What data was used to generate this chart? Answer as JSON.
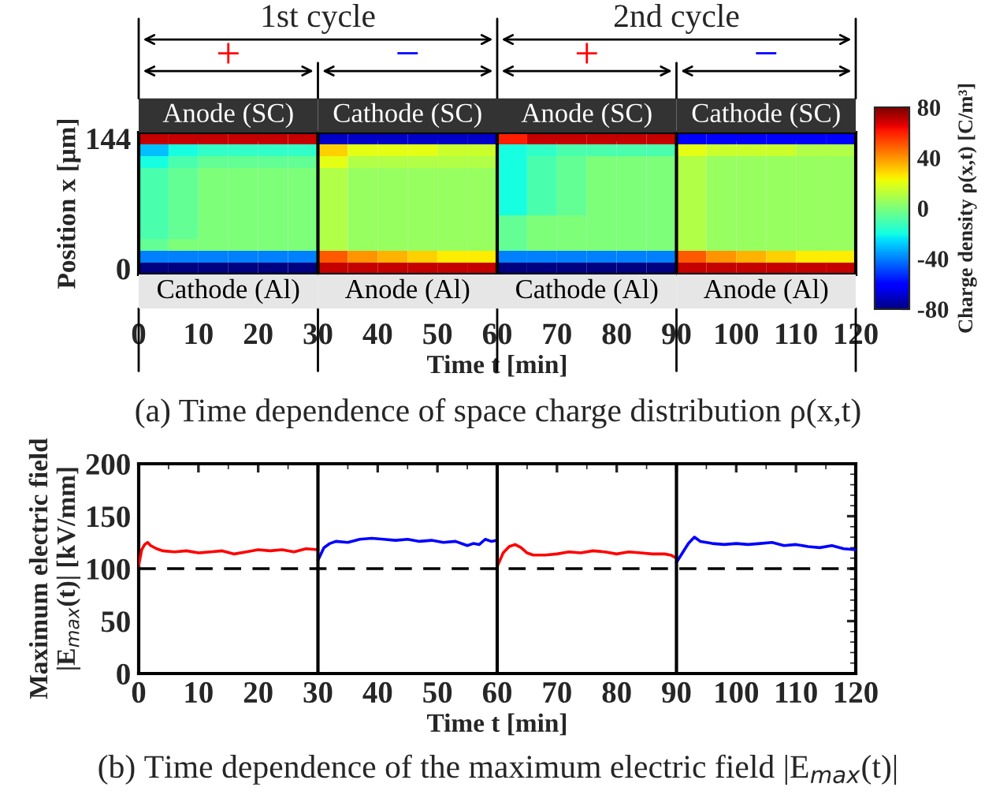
{
  "chart_data": [
    {
      "type": "heatmap",
      "xlabel": "Time t [min]",
      "ylabel": "Position x [μm]",
      "clabel": "Charge density ρ(x,t) [C/m³]",
      "x": [
        2.5,
        7.5,
        12.5,
        17.5,
        22.5,
        27.5,
        32.5,
        37.5,
        42.5,
        47.5,
        52.5,
        57.5,
        62.5,
        67.5,
        72.5,
        77.5,
        82.5,
        87.5,
        92.5,
        97.5,
        102.5,
        107.5,
        112.5,
        117.5
      ],
      "y_categories": [
        "144",
        null,
        null,
        null,
        null,
        null,
        null,
        null,
        null,
        null,
        null,
        "0"
      ],
      "xlim": [
        0,
        120
      ],
      "xticks": [
        0,
        10,
        20,
        30,
        40,
        50,
        60,
        70,
        80,
        90,
        100,
        110,
        120
      ],
      "clim": [
        -80,
        80
      ],
      "cticks": [
        -80,
        -40,
        0,
        40,
        80
      ],
      "cells": [
        [
          70,
          70,
          70,
          70,
          70,
          70,
          -70,
          -70,
          -70,
          -70,
          -70,
          -70,
          60,
          70,
          70,
          70,
          70,
          70,
          -60,
          -60,
          -60,
          -60,
          -60,
          -60
        ],
        [
          -30,
          -20,
          -15,
          -15,
          -15,
          -15,
          30,
          20,
          20,
          20,
          15,
          15,
          -20,
          -15,
          -10,
          -10,
          -10,
          -10,
          20,
          15,
          15,
          15,
          10,
          10
        ],
        [
          -20,
          -10,
          -5,
          -5,
          -5,
          -5,
          20,
          10,
          10,
          10,
          10,
          10,
          -20,
          -10,
          -5,
          0,
          0,
          0,
          10,
          5,
          5,
          5,
          5,
          5
        ],
        [
          -10,
          -5,
          0,
          0,
          0,
          0,
          10,
          5,
          5,
          5,
          5,
          5,
          -20,
          -10,
          -5,
          0,
          0,
          0,
          10,
          5,
          5,
          5,
          5,
          5
        ],
        [
          -10,
          -5,
          0,
          0,
          0,
          0,
          10,
          5,
          5,
          5,
          5,
          5,
          -20,
          -10,
          -5,
          0,
          0,
          0,
          10,
          5,
          5,
          5,
          5,
          5
        ],
        [
          -10,
          -5,
          0,
          0,
          0,
          0,
          10,
          5,
          5,
          5,
          5,
          5,
          -20,
          -10,
          -5,
          0,
          0,
          0,
          10,
          5,
          5,
          5,
          5,
          5
        ],
        [
          -10,
          -5,
          0,
          0,
          0,
          0,
          10,
          5,
          5,
          5,
          5,
          5,
          -20,
          -10,
          -5,
          0,
          0,
          0,
          10,
          5,
          5,
          5,
          5,
          5
        ],
        [
          -10,
          -5,
          0,
          0,
          0,
          0,
          10,
          5,
          5,
          5,
          5,
          5,
          -5,
          0,
          0,
          0,
          0,
          0,
          10,
          5,
          5,
          5,
          5,
          5
        ],
        [
          -10,
          -5,
          0,
          0,
          0,
          0,
          10,
          5,
          5,
          5,
          5,
          5,
          -5,
          0,
          0,
          0,
          0,
          0,
          10,
          5,
          5,
          5,
          5,
          5
        ],
        [
          -5,
          0,
          0,
          0,
          0,
          0,
          10,
          5,
          5,
          5,
          5,
          5,
          -5,
          0,
          0,
          0,
          0,
          0,
          10,
          5,
          5,
          5,
          5,
          5
        ],
        [
          -40,
          -40,
          -40,
          -40,
          -40,
          -40,
          50,
          40,
          35,
          30,
          25,
          25,
          -40,
          -40,
          -40,
          -40,
          -40,
          -40,
          50,
          40,
          35,
          30,
          25,
          25
        ],
        [
          -80,
          -80,
          -80,
          -80,
          -80,
          -80,
          70,
          70,
          70,
          70,
          70,
          70,
          -80,
          -80,
          -80,
          -80,
          -80,
          -80,
          70,
          70,
          70,
          70,
          70,
          70
        ]
      ],
      "ref_lines": [
        {
          "axis": "x",
          "value": 30,
          "color": "#000000"
        },
        {
          "axis": "x",
          "value": 60,
          "color": "#000000"
        },
        {
          "axis": "x",
          "value": 90,
          "color": "#000000"
        }
      ],
      "annotations": [
        "Anode (SC)",
        "Cathode (SC)",
        "Anode (SC)",
        "Cathode (SC)",
        "Cathode (Al)",
        "Anode (Al)",
        "Cathode (Al)",
        "Anode (Al)",
        "1st cycle",
        "2nd cycle",
        "+",
        "−",
        "+",
        "−",
        "(a) Time dependence of space charge distribution ρ(x,t)"
      ]
    },
    {
      "type": "line",
      "xlabel": "Time t [min]",
      "ylabel": "Maximum electric field\n|E$_{max}$(t)| [kV/mm]",
      "xlim": [
        0,
        120
      ],
      "xticks": [
        0,
        10,
        20,
        30,
        40,
        50,
        60,
        70,
        80,
        90,
        100,
        110,
        120
      ],
      "ylim": [
        0,
        200
      ],
      "yticks": [
        0,
        50,
        100,
        150,
        200
      ],
      "grid": false,
      "marker": "none",
      "line_style": "solid",
      "series": [
        {
          "color": "#ff0000",
          "x": [
            0,
            0.5,
            1,
            1.5,
            2,
            3,
            4,
            6,
            8,
            10,
            12,
            14,
            16,
            18,
            20,
            22,
            24,
            26,
            28,
            30
          ],
          "values": [
            103,
            118,
            123,
            125,
            122,
            119,
            117,
            116,
            117,
            115,
            116,
            117,
            114,
            116,
            118,
            117,
            118,
            116,
            119,
            118
          ]
        },
        {
          "color": "#0000ff",
          "x": [
            30,
            31,
            32,
            33,
            35,
            37,
            39,
            41,
            43,
            45,
            47,
            49,
            51,
            53,
            55,
            56,
            57,
            58,
            59,
            60
          ],
          "values": [
            108,
            120,
            124,
            126,
            125,
            128,
            129,
            128,
            127,
            128,
            126,
            127,
            125,
            126,
            122,
            124,
            123,
            128,
            126,
            127
          ]
        },
        {
          "color": "#ff0000",
          "x": [
            60,
            61,
            62,
            63,
            64,
            65,
            66,
            68,
            70,
            72,
            74,
            76,
            78,
            80,
            82,
            84,
            86,
            88,
            89,
            90
          ],
          "values": [
            102,
            115,
            121,
            123,
            120,
            115,
            113,
            113,
            114,
            116,
            115,
            117,
            116,
            114,
            116,
            115,
            114,
            114,
            113,
            110
          ]
        },
        {
          "color": "#0000ff",
          "x": [
            90,
            91,
            92,
            93,
            94,
            96,
            98,
            100,
            102,
            104,
            106,
            108,
            110,
            112,
            114,
            116,
            118,
            120
          ],
          "values": [
            106,
            115,
            124,
            130,
            126,
            124,
            123,
            124,
            123,
            124,
            125,
            122,
            123,
            121,
            120,
            122,
            119,
            118
          ]
        }
      ],
      "ref_lines": [
        {
          "axis": "y",
          "value": 100,
          "color": "#000000",
          "line_style": "dashed"
        },
        {
          "axis": "x",
          "value": 30,
          "color": "#000000"
        },
        {
          "axis": "x",
          "value": 60,
          "color": "#000000"
        },
        {
          "axis": "x",
          "value": 90,
          "color": "#000000"
        }
      ],
      "annotations": [
        "(b) Time dependence of the maximum electric field |E$_{max}$(t)|"
      ]
    }
  ]
}
